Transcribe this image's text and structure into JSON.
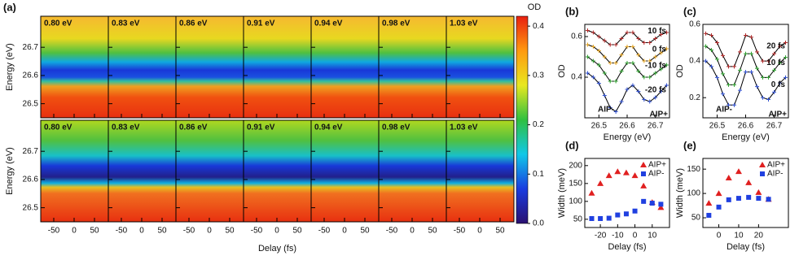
{
  "chart_data": [
    {
      "type": "heatmap",
      "panel": "(a)",
      "xlabel": "Delay (fs)",
      "ylabel": "Energy (eV)",
      "panels": [
        "0.80 eV",
        "0.83 eV",
        "0.86 eV",
        "0.91 eV",
        "0.94 eV",
        "0.98 eV",
        "1.03 eV"
      ],
      "xlim": [
        -82,
        84
      ],
      "xticks": [
        -50,
        0,
        50
      ],
      "ylim": [
        26.45,
        26.81
      ],
      "yticks": [
        26.5,
        26.6,
        26.7
      ],
      "colorbar_label": "OD",
      "clim": [
        0,
        0.42
      ],
      "cticks": [
        {
          "value": 0,
          "label": "0.0"
        },
        0.1,
        0.2,
        0.3,
        0.4
      ],
      "colormap": [
        "#2a1070",
        "#1a3ce0",
        "#10c8e8",
        "#30c040",
        "#e8e820",
        "#ff9a10",
        "#e82010"
      ]
    },
    {
      "type": "line",
      "panel": "(b)",
      "xlabel": "Energy (eV)",
      "ylabel": "OD",
      "x": [
        26.46,
        26.48,
        26.5,
        26.52,
        26.54,
        26.56,
        26.58,
        26.6,
        26.62,
        26.64,
        26.66,
        26.68,
        26.7,
        26.72,
        26.74
      ],
      "series": [
        {
          "name": "10 fs",
          "color": "#b02828",
          "values": [
            0.63,
            0.62,
            0.6,
            0.58,
            0.56,
            0.56,
            0.59,
            0.62,
            0.62,
            0.59,
            0.57,
            0.57,
            0.59,
            0.61,
            0.62
          ]
        },
        {
          "name": "0 fs",
          "color": "#e0a020",
          "values": [
            0.56,
            0.55,
            0.53,
            0.5,
            0.47,
            0.47,
            0.51,
            0.55,
            0.55,
            0.51,
            0.48,
            0.48,
            0.5,
            0.52,
            0.54
          ]
        },
        {
          "name": "-10 fs",
          "color": "#2e9e2e",
          "values": [
            0.5,
            0.48,
            0.46,
            0.42,
            0.38,
            0.38,
            0.43,
            0.47,
            0.47,
            0.43,
            0.4,
            0.4,
            0.42,
            0.44,
            0.46
          ]
        },
        {
          "name": "-20 fs",
          "color": "#3050d0",
          "values": [
            0.42,
            0.4,
            0.37,
            0.31,
            0.25,
            0.23,
            0.28,
            0.34,
            0.36,
            0.33,
            0.29,
            0.28,
            0.3,
            0.33,
            0.36
          ]
        }
      ],
      "xlim": [
        26.45,
        26.75
      ],
      "xticks": [
        26.5,
        26.6,
        26.7
      ],
      "ylim": [
        0.2,
        0.66
      ],
      "yticks": [
        0.4,
        0.6
      ],
      "annotations": [
        "AIP-",
        "AIP+"
      ]
    },
    {
      "type": "line",
      "panel": "(c)",
      "xlabel": "Energy (eV)",
      "ylabel": "OD",
      "x": [
        26.46,
        26.48,
        26.5,
        26.52,
        26.54,
        26.56,
        26.58,
        26.6,
        26.62,
        26.64,
        26.66,
        26.68,
        26.7,
        26.72,
        26.74
      ],
      "series": [
        {
          "name": "20 fs",
          "color": "#b02828",
          "values": [
            0.55,
            0.54,
            0.5,
            0.43,
            0.37,
            0.37,
            0.45,
            0.54,
            0.53,
            0.45,
            0.4,
            0.4,
            0.44,
            0.48,
            0.5
          ]
        },
        {
          "name": "10 fs",
          "color": "#2e9e2e",
          "values": [
            0.48,
            0.46,
            0.41,
            0.33,
            0.27,
            0.27,
            0.35,
            0.44,
            0.44,
            0.36,
            0.31,
            0.31,
            0.35,
            0.39,
            0.42
          ]
        },
        {
          "name": "0 fs",
          "color": "#3050d0",
          "values": [
            0.4,
            0.37,
            0.31,
            0.22,
            0.16,
            0.16,
            0.24,
            0.34,
            0.34,
            0.26,
            0.2,
            0.19,
            0.23,
            0.28,
            0.31
          ]
        }
      ],
      "xlim": [
        26.45,
        26.75
      ],
      "xticks": [
        26.5,
        26.6,
        26.7
      ],
      "ylim": [
        0.09,
        0.6
      ],
      "yticks": [
        0.2,
        0.4,
        0.6
      ],
      "annotations": [
        "AIP-",
        "AIP+"
      ]
    },
    {
      "type": "scatter",
      "panel": "(d)",
      "xlabel": "Delay (fs)",
      "ylabel": "Width (meV)",
      "x": [
        -25,
        -20,
        -15,
        -10,
        -5,
        0,
        5,
        10,
        15
      ],
      "series": [
        {
          "name": "AIP+",
          "color": "#e02020",
          "marker": "triangle",
          "values": [
            123,
            150,
            172,
            183,
            180,
            172,
            143,
            97,
            83
          ]
        },
        {
          "name": "AIP-",
          "color": "#2040e0",
          "marker": "square",
          "values": [
            52,
            52,
            53,
            62,
            65,
            73,
            100,
            95,
            92
          ]
        }
      ],
      "xlim": [
        -29,
        20
      ],
      "xticks": [
        -20,
        -10,
        0,
        10
      ],
      "ylim": [
        27,
        220
      ],
      "yticks": [
        50,
        100,
        150,
        200
      ]
    },
    {
      "type": "scatter",
      "panel": "(e)",
      "xlabel": "Delay (fs)",
      "ylabel": "Width (meV)",
      "x": [
        -5,
        0,
        5,
        10,
        15,
        20,
        25
      ],
      "series": [
        {
          "name": "AIP+",
          "color": "#e02020",
          "marker": "triangle",
          "values": [
            80,
            100,
            132,
            145,
            122,
            102,
            88
          ]
        },
        {
          "name": "AIP-",
          "color": "#2040e0",
          "marker": "square",
          "values": [
            55,
            72,
            87,
            90,
            92,
            90,
            88
          ]
        }
      ],
      "xlim": [
        -8,
        35
      ],
      "xticks": [
        0,
        10,
        20
      ],
      "ylim": [
        30,
        172
      ],
      "yticks": [
        50,
        100,
        150
      ]
    }
  ]
}
